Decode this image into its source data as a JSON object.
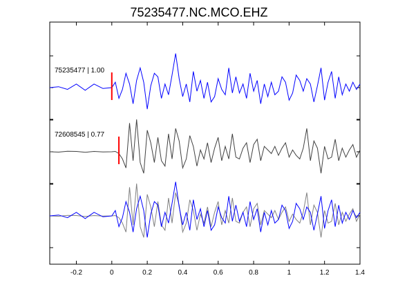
{
  "chart_data": {
    "type": "line",
    "title": "75235477.NC.MCO.EHZ",
    "xlim": [
      -0.35,
      1.4
    ],
    "x_ticks": [
      -0.2,
      0,
      0.2,
      0.4,
      0.6,
      0.8,
      1,
      1.2,
      1.4
    ],
    "x_tick_labels": [
      "-0.2",
      "0",
      "0.2",
      "0.4",
      "0.6",
      "0.8",
      "1",
      "1.2",
      "1.4"
    ],
    "grid": false,
    "colors": {
      "master": "#0000ff",
      "correlated": "#404040",
      "overlay_gray": "#808080",
      "pick": "#ff0000"
    },
    "panels": [
      {
        "label": "75235477 | 1.00",
        "color": "#0000ff",
        "pick_time": 0.0,
        "trace": "master"
      },
      {
        "label": "72608545 | 0.77",
        "color": "#404040",
        "pick_time": 0.04,
        "trace": "correlated"
      },
      {
        "label": "",
        "overlay": true,
        "traces": [
          "correlated",
          "master"
        ]
      }
    ],
    "series": [
      {
        "id": "master",
        "x": [
          -0.35,
          -0.3,
          -0.25,
          -0.2,
          -0.15,
          -0.1,
          -0.05,
          0.0,
          0.02,
          0.04,
          0.06,
          0.08,
          0.1,
          0.12,
          0.14,
          0.16,
          0.18,
          0.2,
          0.22,
          0.24,
          0.26,
          0.28,
          0.3,
          0.32,
          0.34,
          0.36,
          0.38,
          0.4,
          0.42,
          0.44,
          0.46,
          0.48,
          0.5,
          0.52,
          0.54,
          0.56,
          0.58,
          0.6,
          0.62,
          0.64,
          0.66,
          0.68,
          0.7,
          0.72,
          0.74,
          0.76,
          0.78,
          0.8,
          0.82,
          0.84,
          0.86,
          0.88,
          0.9,
          0.92,
          0.94,
          0.96,
          0.98,
          1.0,
          1.02,
          1.04,
          1.06,
          1.08,
          1.1,
          1.12,
          1.14,
          1.16,
          1.18,
          1.2,
          1.22,
          1.24,
          1.26,
          1.28,
          1.3,
          1.32,
          1.34,
          1.36,
          1.38,
          1.4
        ],
        "y": [
          0,
          0.05,
          -0.1,
          0.2,
          -0.15,
          0.2,
          -0.05,
          0,
          0.3,
          -0.6,
          -0.1,
          0.8,
          0.2,
          -0.9,
          0.4,
          1.1,
          0.3,
          -1.2,
          0.1,
          0.8,
          0.6,
          -0.6,
          0.2,
          -0.4,
          0.7,
          1.9,
          0.5,
          -0.5,
          0.2,
          -0.8,
          0.9,
          -0.2,
          0.4,
          -0.6,
          0.3,
          -0.8,
          -0.5,
          0.5,
          -0.1,
          -0.4,
          1.1,
          -0.3,
          0.6,
          -0.3,
          0.2,
          -0.6,
          0.8,
          -0.2,
          0.4,
          -0.9,
          0.2,
          -0.5,
          0.3,
          -0.4,
          -0.2,
          0.6,
          0.3,
          -0.7,
          -0.3,
          0.7,
          0.4,
          -0.2,
          0.5,
          0.2,
          -0.8,
          0.1,
          1.1,
          -0.7,
          0.3,
          0.9,
          -0.6,
          0.6,
          -0.4,
          0.2,
          -0.2,
          0.3,
          -0.1,
          0.2
        ]
      },
      {
        "id": "correlated",
        "x": [
          -0.35,
          -0.3,
          -0.25,
          -0.2,
          -0.15,
          -0.1,
          -0.05,
          0.0,
          0.02,
          0.04,
          0.06,
          0.08,
          0.1,
          0.12,
          0.14,
          0.16,
          0.18,
          0.2,
          0.22,
          0.24,
          0.26,
          0.28,
          0.3,
          0.32,
          0.34,
          0.36,
          0.38,
          0.4,
          0.42,
          0.44,
          0.46,
          0.48,
          0.5,
          0.52,
          0.54,
          0.56,
          0.58,
          0.6,
          0.62,
          0.64,
          0.66,
          0.68,
          0.7,
          0.72,
          0.74,
          0.76,
          0.78,
          0.8,
          0.82,
          0.84,
          0.86,
          0.88,
          0.9,
          0.92,
          0.94,
          0.96,
          0.98,
          1.0,
          1.02,
          1.04,
          1.06,
          1.08,
          1.1,
          1.12,
          1.14,
          1.16,
          1.18,
          1.2,
          1.22,
          1.24,
          1.26,
          1.28,
          1.3,
          1.32,
          1.34,
          1.36,
          1.38,
          1.4
        ],
        "y": [
          0,
          -0.02,
          0.03,
          0.02,
          -0.03,
          0.02,
          -0.01,
          0,
          0.02,
          -0.1,
          -0.4,
          -0.9,
          1.6,
          -0.5,
          1.8,
          -0.6,
          -1.2,
          1.2,
          0.5,
          -0.6,
          0.8,
          -0.5,
          -0.8,
          1.0,
          -0.4,
          1.3,
          0.6,
          -0.9,
          -0.4,
          0.9,
          0.3,
          -0.8,
          0.1,
          -0.4,
          0.5,
          -0.6,
          0.2,
          0.8,
          -0.5,
          0.3,
          -0.4,
          1.0,
          -0.3,
          -0.4,
          0.2,
          0.5,
          -0.6,
          0.4,
          0.7,
          -0.5,
          0.3,
          0.1,
          -0.1,
          0.3,
          -0.2,
          0.2,
          0.5,
          -0.3,
          0.1,
          -0.2,
          -0.4,
          0.2,
          1.3,
          -0.5,
          0.6,
          0.2,
          -1.2,
          0.3,
          -0.4,
          -0.3,
          0.7,
          -0.5,
          0.2,
          -0.3,
          0.1,
          0.4,
          -0.3,
          0.1
        ]
      }
    ]
  }
}
